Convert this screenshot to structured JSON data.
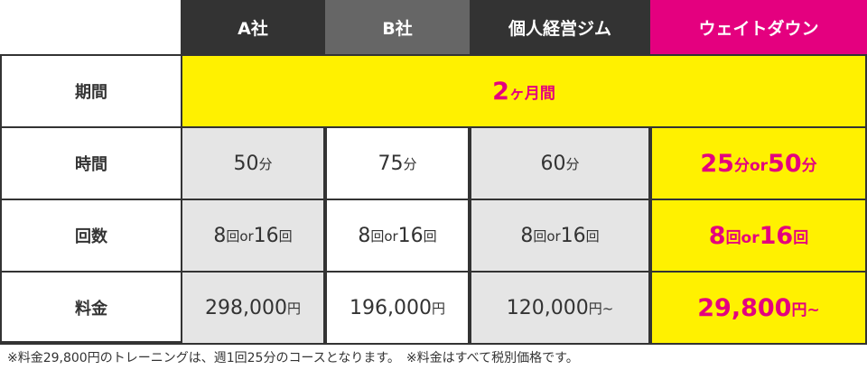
{
  "headers": [
    {
      "label": "A社",
      "color": "#333333"
    },
    {
      "label": "B社",
      "color": "#666666"
    },
    {
      "label": "個人経営ジム",
      "color": "#333333"
    },
    {
      "label": "ウェイトダウン",
      "color": "#e4007f"
    }
  ],
  "rows": {
    "period": {
      "label": "期間",
      "value_num": "2",
      "value_unit": "ヶ月間"
    },
    "time": {
      "label": "時間",
      "a": [
        "50",
        "分"
      ],
      "b": [
        "75",
        "分"
      ],
      "c": [
        "60",
        "分"
      ],
      "d": [
        "25",
        "分or",
        "50",
        "分"
      ]
    },
    "count": {
      "label": "回数",
      "a": [
        "8",
        "回or",
        "16",
        "回"
      ],
      "b": [
        "8",
        "回or",
        "16",
        "回"
      ],
      "c": [
        "8",
        "回or",
        "16",
        "回"
      ],
      "d": [
        "8",
        "回or",
        "16",
        "回"
      ]
    },
    "price": {
      "label": "料金",
      "a": [
        "298,000",
        "円"
      ],
      "b": [
        "196,000",
        "円"
      ],
      "c": [
        "120,000",
        "円~"
      ],
      "d": [
        "29,800",
        "円~"
      ]
    }
  },
  "footnote": "※料金29,800円のトレーニングは、週1回25分のコースとなります。　※料金はすべて税別価格です。",
  "colors": {
    "highlight": "#fff100",
    "accent": "#e4007f",
    "gray": "#e5e5e5"
  }
}
